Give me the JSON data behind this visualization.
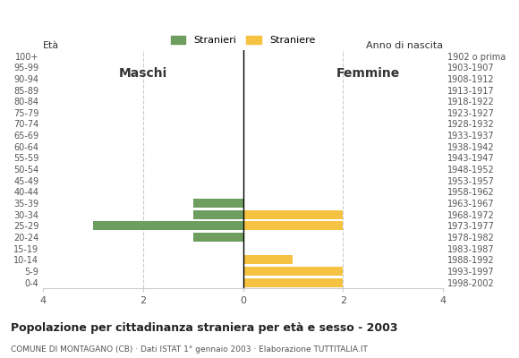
{
  "age_groups": [
    "100+",
    "95-99",
    "90-94",
    "85-89",
    "80-84",
    "75-79",
    "70-74",
    "65-69",
    "60-64",
    "55-59",
    "50-54",
    "45-49",
    "40-44",
    "35-39",
    "30-34",
    "25-29",
    "20-24",
    "15-19",
    "10-14",
    "5-9",
    "0-4"
  ],
  "birth_years": [
    "1902 o prima",
    "1903-1907",
    "1908-1912",
    "1913-1917",
    "1918-1922",
    "1923-1927",
    "1928-1932",
    "1933-1937",
    "1938-1942",
    "1943-1947",
    "1948-1952",
    "1953-1957",
    "1958-1962",
    "1963-1967",
    "1968-1972",
    "1973-1977",
    "1978-1982",
    "1983-1987",
    "1988-1992",
    "1993-1997",
    "1998-2002"
  ],
  "males": [
    0,
    0,
    0,
    0,
    0,
    0,
    0,
    0,
    0,
    0,
    0,
    0,
    0,
    1,
    1,
    3,
    1,
    0,
    0,
    0,
    0
  ],
  "females": [
    0,
    0,
    0,
    0,
    0,
    0,
    0,
    0,
    0,
    0,
    0,
    0,
    0,
    0,
    2,
    2,
    0,
    0,
    1,
    2,
    2
  ],
  "male_color": "#6e9e5f",
  "female_color": "#f5c242",
  "xlim": 4,
  "title": "Popolazione per cittadinanza straniera per età e sesso - 2003",
  "subtitle": "COMUNE DI MONTAGANO (CB) · Dati ISTAT 1° gennaio 2003 · Elaborazione TUTTITALIA.IT",
  "legend_male": "Stranieri",
  "legend_female": "Straniere",
  "label_eta": "Età",
  "label_anno": "Anno di nascita",
  "label_maschi": "Maschi",
  "label_femmine": "Femmine",
  "bg_color": "#ffffff",
  "grid_color": "#cccccc",
  "bar_height": 0.8
}
